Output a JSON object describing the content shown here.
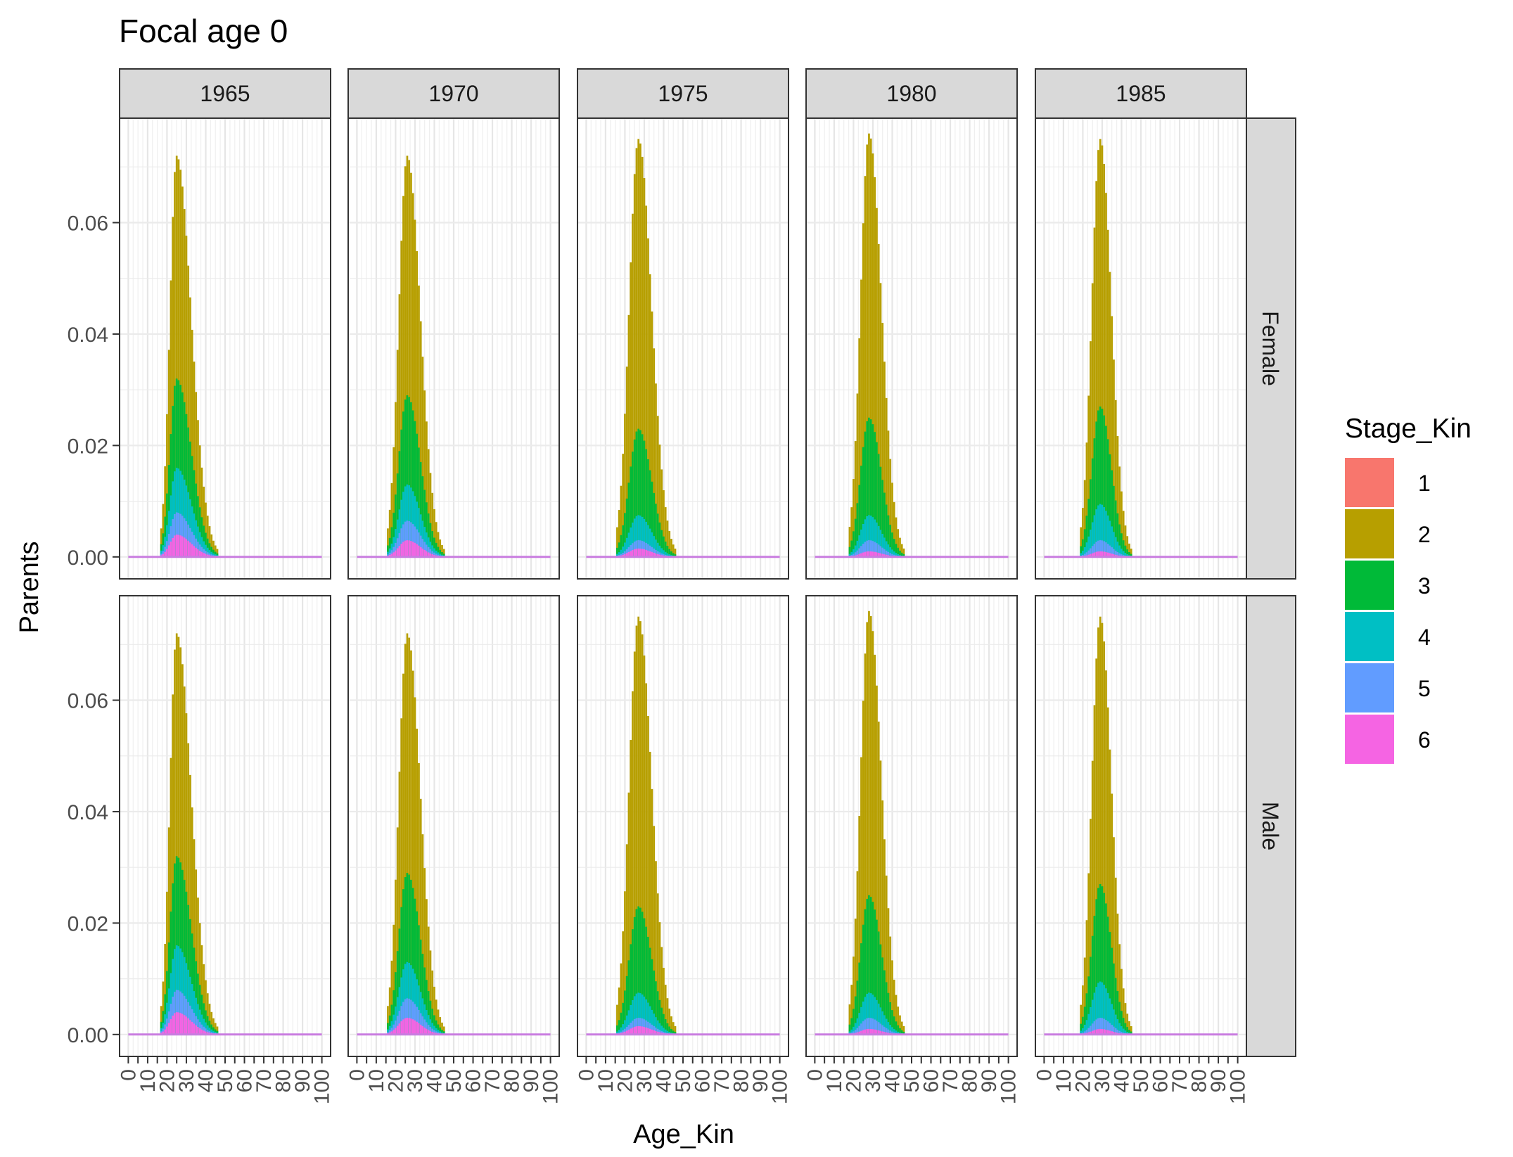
{
  "chart_data": {
    "type": "bar",
    "stacked": true,
    "title": "Focal age 0",
    "xlabel": "Age_Kin",
    "ylabel": "Parents",
    "xlim": [
      0,
      100
    ],
    "ylim": [
      0,
      0.075
    ],
    "x_ticks": [
      "0",
      "10",
      "20",
      "30",
      "40",
      "50",
      "60",
      "70",
      "80",
      "90",
      "100"
    ],
    "y_ticks": [
      "0.00",
      "0.02",
      "0.04",
      "0.06"
    ],
    "grid": true,
    "legend": {
      "title": "Stage_Kin",
      "position": "right",
      "items": [
        {
          "label": "1",
          "color": "#F8766D"
        },
        {
          "label": "2",
          "color": "#B79F00"
        },
        {
          "label": "3",
          "color": "#00BA38"
        },
        {
          "label": "4",
          "color": "#00BFC4"
        },
        {
          "label": "5",
          "color": "#619CFF"
        },
        {
          "label": "6",
          "color": "#F564E3"
        }
      ]
    },
    "facet_columns": [
      "1965",
      "1970",
      "1975",
      "1980",
      "1985"
    ],
    "facet_rows": [
      "Female",
      "Male"
    ],
    "panels": [
      {
        "year": "1965",
        "peak_age": 25,
        "peak_total": 0.072,
        "stage3plus_peak": 0.032,
        "stage4plus_peak": 0.016,
        "stage5plus_peak": 0.008,
        "stage6_peak": 0.004,
        "start_age": 17,
        "end_age": 46
      },
      {
        "year": "1970",
        "peak_age": 26,
        "peak_total": 0.072,
        "stage3plus_peak": 0.029,
        "stage4plus_peak": 0.013,
        "stage5plus_peak": 0.0065,
        "stage6_peak": 0.003,
        "start_age": 16,
        "end_age": 45
      },
      {
        "year": "1975",
        "peak_age": 27,
        "peak_total": 0.075,
        "stage3plus_peak": 0.023,
        "stage4plus_peak": 0.0075,
        "stage5plus_peak": 0.003,
        "stage6_peak": 0.0015,
        "start_age": 16,
        "end_age": 46
      },
      {
        "year": "1980",
        "peak_age": 28,
        "peak_total": 0.076,
        "stage3plus_peak": 0.025,
        "stage4plus_peak": 0.0075,
        "stage5plus_peak": 0.003,
        "stage6_peak": 0.001,
        "start_age": 18,
        "end_age": 46
      },
      {
        "year": "1985",
        "peak_age": 29,
        "peak_total": 0.075,
        "stage3plus_peak": 0.027,
        "stage4plus_peak": 0.0095,
        "stage5plus_peak": 0.003,
        "stage6_peak": 0.001,
        "start_age": 19,
        "end_age": 45
      }
    ]
  }
}
